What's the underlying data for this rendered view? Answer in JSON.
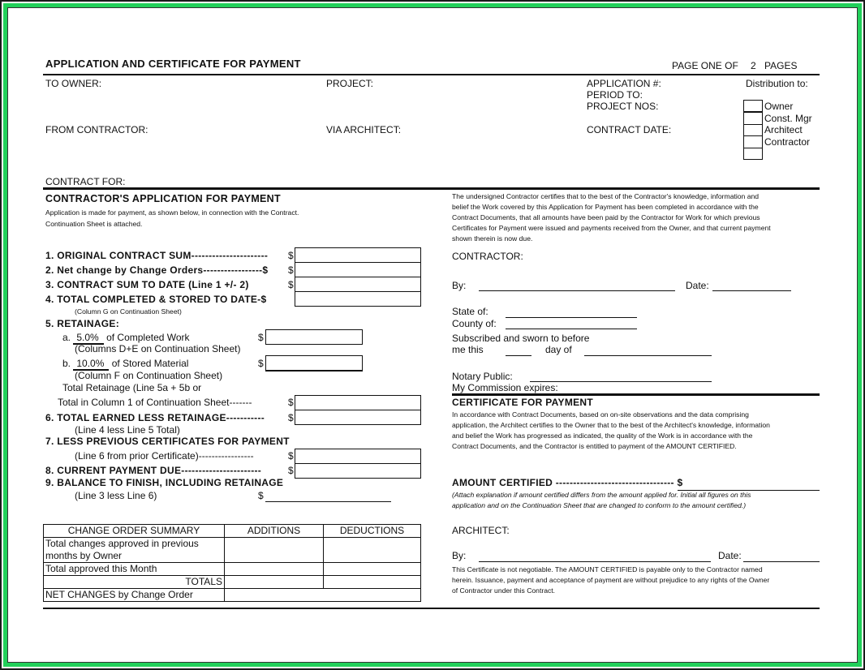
{
  "header": {
    "title": "APPLICATION AND CERTIFICATE FOR PAYMENT",
    "page_prefix": "PAGE ONE OF",
    "page_count": "2",
    "page_suffix": "PAGES"
  },
  "info": {
    "to_owner": "TO OWNER:",
    "project": "PROJECT:",
    "application_no": "APPLICATION #:",
    "period_to": "PERIOD TO:",
    "project_nos": "PROJECT NOS:",
    "from_contractor": "FROM CONTRACTOR:",
    "via_architect": "VIA ARCHITECT:",
    "contract_date": "CONTRACT DATE:",
    "contract_for": "CONTRACT FOR:"
  },
  "distribution": {
    "label": "Distribution to:",
    "items": [
      "Owner",
      "Const. Mgr",
      "Architect",
      "Contractor",
      ""
    ]
  },
  "application": {
    "heading": "CONTRACTOR'S APPLICATION FOR PAYMENT",
    "intro1": "Application is made for payment, as shown below, in connection with the Contract.",
    "intro2": "Continuation Sheet is attached.",
    "line1": "1. ORIGINAL CONTRACT SUM----------------------",
    "line2": "2. Net change by Change Orders-----------------$",
    "line3": "3. CONTRACT SUM TO DATE (Line 1 +/- 2)",
    "line4": "4. TOTAL COMPLETED & STORED TO DATE-$",
    "line4_note": "(Column G on Continuation Sheet)",
    "line5": "5. RETAINAGE:",
    "line5a_prefix": "a.",
    "line5a_pct": "5.0%",
    "line5a_text": "of Completed Work",
    "line5a_note": "(Columns D+E on Continuation Sheet)",
    "line5b_prefix": "b.",
    "line5b_pct": "10.0%",
    "line5b_text": "of Stored Material",
    "line5b_note": "(Column F on Continuation Sheet)",
    "total_ret1": "Total Retainage (Line 5a + 5b or",
    "total_ret2": "Total in Column 1 of Continuation Sheet-------",
    "line6": "6. TOTAL EARNED LESS RETAINAGE-----------",
    "line6_note": "(Line 4 less Line 5 Total)",
    "line7": "7. LESS PREVIOUS CERTIFICATES FOR PAYMENT",
    "line7_note": "(Line 6 from prior Certificate)-----------------",
    "line8": "8. CURRENT PAYMENT DUE-----------------------",
    "line9": "9. BALANCE TO FINISH, INCLUDING RETAINAGE",
    "line9_note": "(Line 3 less Line 6)",
    "dollar": "$"
  },
  "change_orders": {
    "headers": [
      "CHANGE ORDER SUMMARY",
      "ADDITIONS",
      "DEDUCTIONS"
    ],
    "row1": "Total changes approved in previous months by Owner",
    "row2": "Total approved this Month",
    "totals": "TOTALS",
    "net": "NET CHANGES by Change Order"
  },
  "certification": {
    "para": [
      "The undersigned Contractor certifies that to the best of the Contractor's knowledge, information and",
      "belief the Work covered by this Application for Payment has been completed in accordance with the",
      "Contract Documents, that all amounts have been paid by the Contractor for Work for which previous",
      "Certificates for Payment were issued and payments received from the Owner, and that current payment",
      "shown therein is now due."
    ],
    "contractor": "CONTRACTOR:",
    "by": "By:",
    "date": "Date:",
    "state": "State of:",
    "county": "County of:",
    "sworn": "Subscribed and sworn to before",
    "me_this": "me this",
    "day_of": "day of",
    "notary": "Notary Public:",
    "commission": "My Commission expires:"
  },
  "certificate": {
    "heading": "CERTIFICATE FOR PAYMENT",
    "para": [
      "In accordance with Contract Documents, based on on-site observations and the data comprising",
      "application, the Architect certifies to the Owner that to the best of the Architect's knowledge, information",
      "and belief the Work has progressed as indicated, the quality of the Work is in accordance with the",
      "Contract Documents, and the Contractor is entitled to payment of the AMOUNT CERTIFIED."
    ],
    "amount_certified": "AMOUNT CERTIFIED ---------------------------------- $",
    "note": [
      "(Attach explanation if amount certified differs from the amount applied for.  Initial all figures on this",
      "application and on the Continuation Sheet that are changed to conform to the amount certified.)"
    ],
    "architect": "ARCHITECT:",
    "by": "By:",
    "date": "Date:",
    "disclaimer": [
      "This Certificate is not negotiable.  The AMOUNT CERTIFIED is payable only to the Contractor named",
      "herein.  Issuance, payment and acceptance of payment are without prejudice to any rights of the Owner",
      "of Contractor under this Contract."
    ]
  },
  "colors": {
    "frame_green": "#22d05a"
  }
}
